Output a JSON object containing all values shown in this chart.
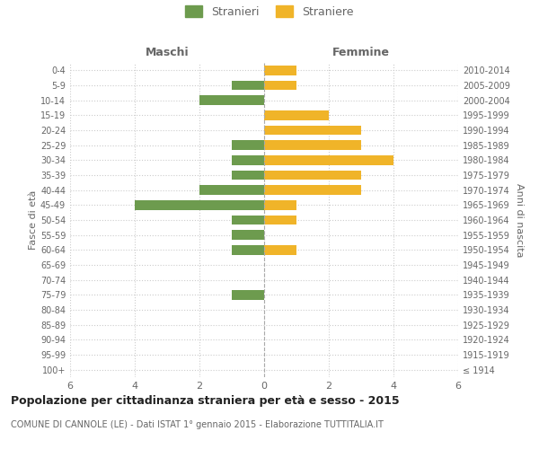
{
  "age_groups": [
    "100+",
    "95-99",
    "90-94",
    "85-89",
    "80-84",
    "75-79",
    "70-74",
    "65-69",
    "60-64",
    "55-59",
    "50-54",
    "45-49",
    "40-44",
    "35-39",
    "30-34",
    "25-29",
    "20-24",
    "15-19",
    "10-14",
    "5-9",
    "0-4"
  ],
  "birth_years": [
    "≤ 1914",
    "1915-1919",
    "1920-1924",
    "1925-1929",
    "1930-1934",
    "1935-1939",
    "1940-1944",
    "1945-1949",
    "1950-1954",
    "1955-1959",
    "1960-1964",
    "1965-1969",
    "1970-1974",
    "1975-1979",
    "1980-1984",
    "1985-1989",
    "1990-1994",
    "1995-1999",
    "2000-2004",
    "2005-2009",
    "2010-2014"
  ],
  "maschi": [
    0,
    0,
    0,
    0,
    0,
    1,
    0,
    0,
    1,
    1,
    1,
    4,
    2,
    1,
    1,
    1,
    0,
    0,
    2,
    1,
    0
  ],
  "femmine": [
    0,
    0,
    0,
    0,
    0,
    0,
    0,
    0,
    1,
    0,
    1,
    1,
    3,
    3,
    4,
    3,
    3,
    2,
    0,
    1,
    1
  ],
  "maschi_color": "#6d9b4e",
  "femmine_color": "#f0b429",
  "title": "Popolazione per cittadinanza straniera per età e sesso - 2015",
  "subtitle": "COMUNE DI CANNOLE (LE) - Dati ISTAT 1° gennaio 2015 - Elaborazione TUTTITALIA.IT",
  "xlabel_left": "Maschi",
  "xlabel_right": "Femmine",
  "ylabel_left": "Fasce di età",
  "ylabel_right": "Anni di nascita",
  "legend_maschi": "Stranieri",
  "legend_femmine": "Straniere",
  "xlim": 6,
  "background_color": "#ffffff",
  "grid_color": "#cccccc",
  "text_color": "#666666"
}
